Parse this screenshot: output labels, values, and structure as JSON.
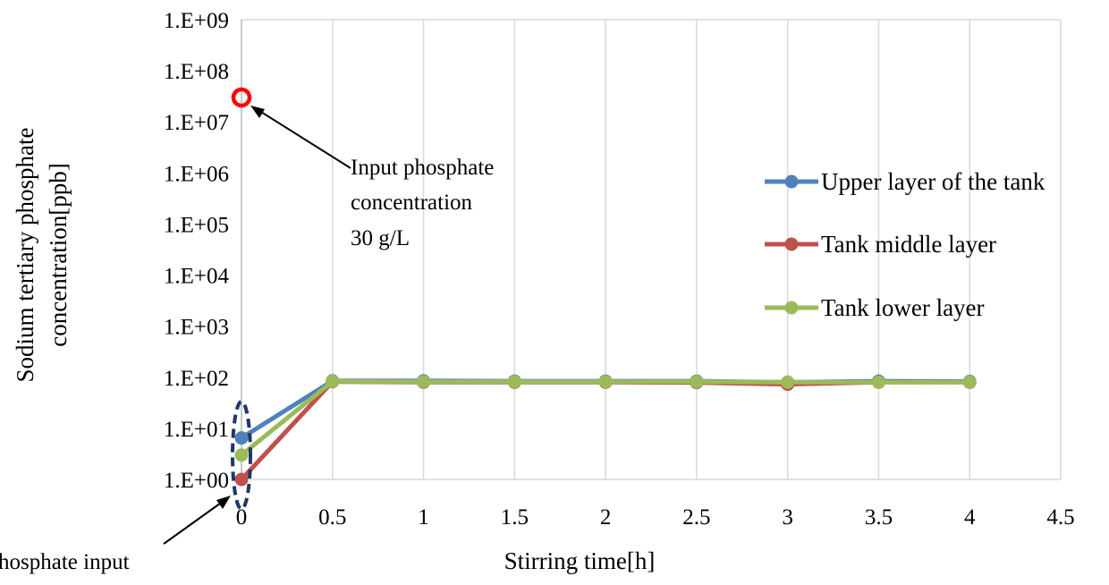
{
  "chart_data": {
    "type": "line",
    "title": "",
    "xlabel": "Stirring time[h]",
    "ylabel_lines": [
      "Sodium tertiary phosphate",
      "concentration[ppb]"
    ],
    "xlim": [
      0,
      4.5
    ],
    "xticks": [
      0,
      0.5,
      1,
      1.5,
      2,
      2.5,
      3,
      3.5,
      4,
      4.5
    ],
    "xtick_labels": [
      "0",
      "0.5",
      "1",
      "1.5",
      "2",
      "2.5",
      "3",
      "3.5",
      "4",
      "4.5"
    ],
    "yscale": "log",
    "ylim": [
      1,
      1000000000
    ],
    "yticks": [
      1,
      10,
      100,
      1000,
      10000,
      100000,
      1000000,
      10000000,
      100000000,
      1000000000
    ],
    "ytick_labels": [
      "1.E+00",
      "1.E+01",
      "1.E+02",
      "1.E+03",
      "1.E+04",
      "1.E+05",
      "1.E+06",
      "1.E+07",
      "1.E+08",
      "1.E+09"
    ],
    "grid": "vertical",
    "legend_position": "right",
    "x": [
      0,
      0.5,
      1,
      1.5,
      2,
      2.5,
      3,
      3.5,
      4
    ],
    "series": [
      {
        "name": "Upper layer of the tank",
        "color": "#4f81bd",
        "values": [
          6.5,
          85,
          85,
          84,
          84,
          84,
          80,
          84,
          83
        ]
      },
      {
        "name": "Tank middle layer",
        "color": "#c0504d",
        "values": [
          1,
          82,
          80,
          80,
          80,
          79,
          73,
          80,
          80
        ]
      },
      {
        "name": "Tank lower layer",
        "color": "#9bbb59",
        "values": [
          3,
          83,
          82,
          82,
          82,
          82,
          80,
          80,
          81
        ]
      }
    ],
    "input_point": {
      "x": 0,
      "y": 30000000,
      "color": "#ff0000"
    },
    "annotations": {
      "input_concentration": [
        "Input phosphate",
        "concentration",
        "30 g/L"
      ],
      "before_input": "hosphate input"
    }
  }
}
